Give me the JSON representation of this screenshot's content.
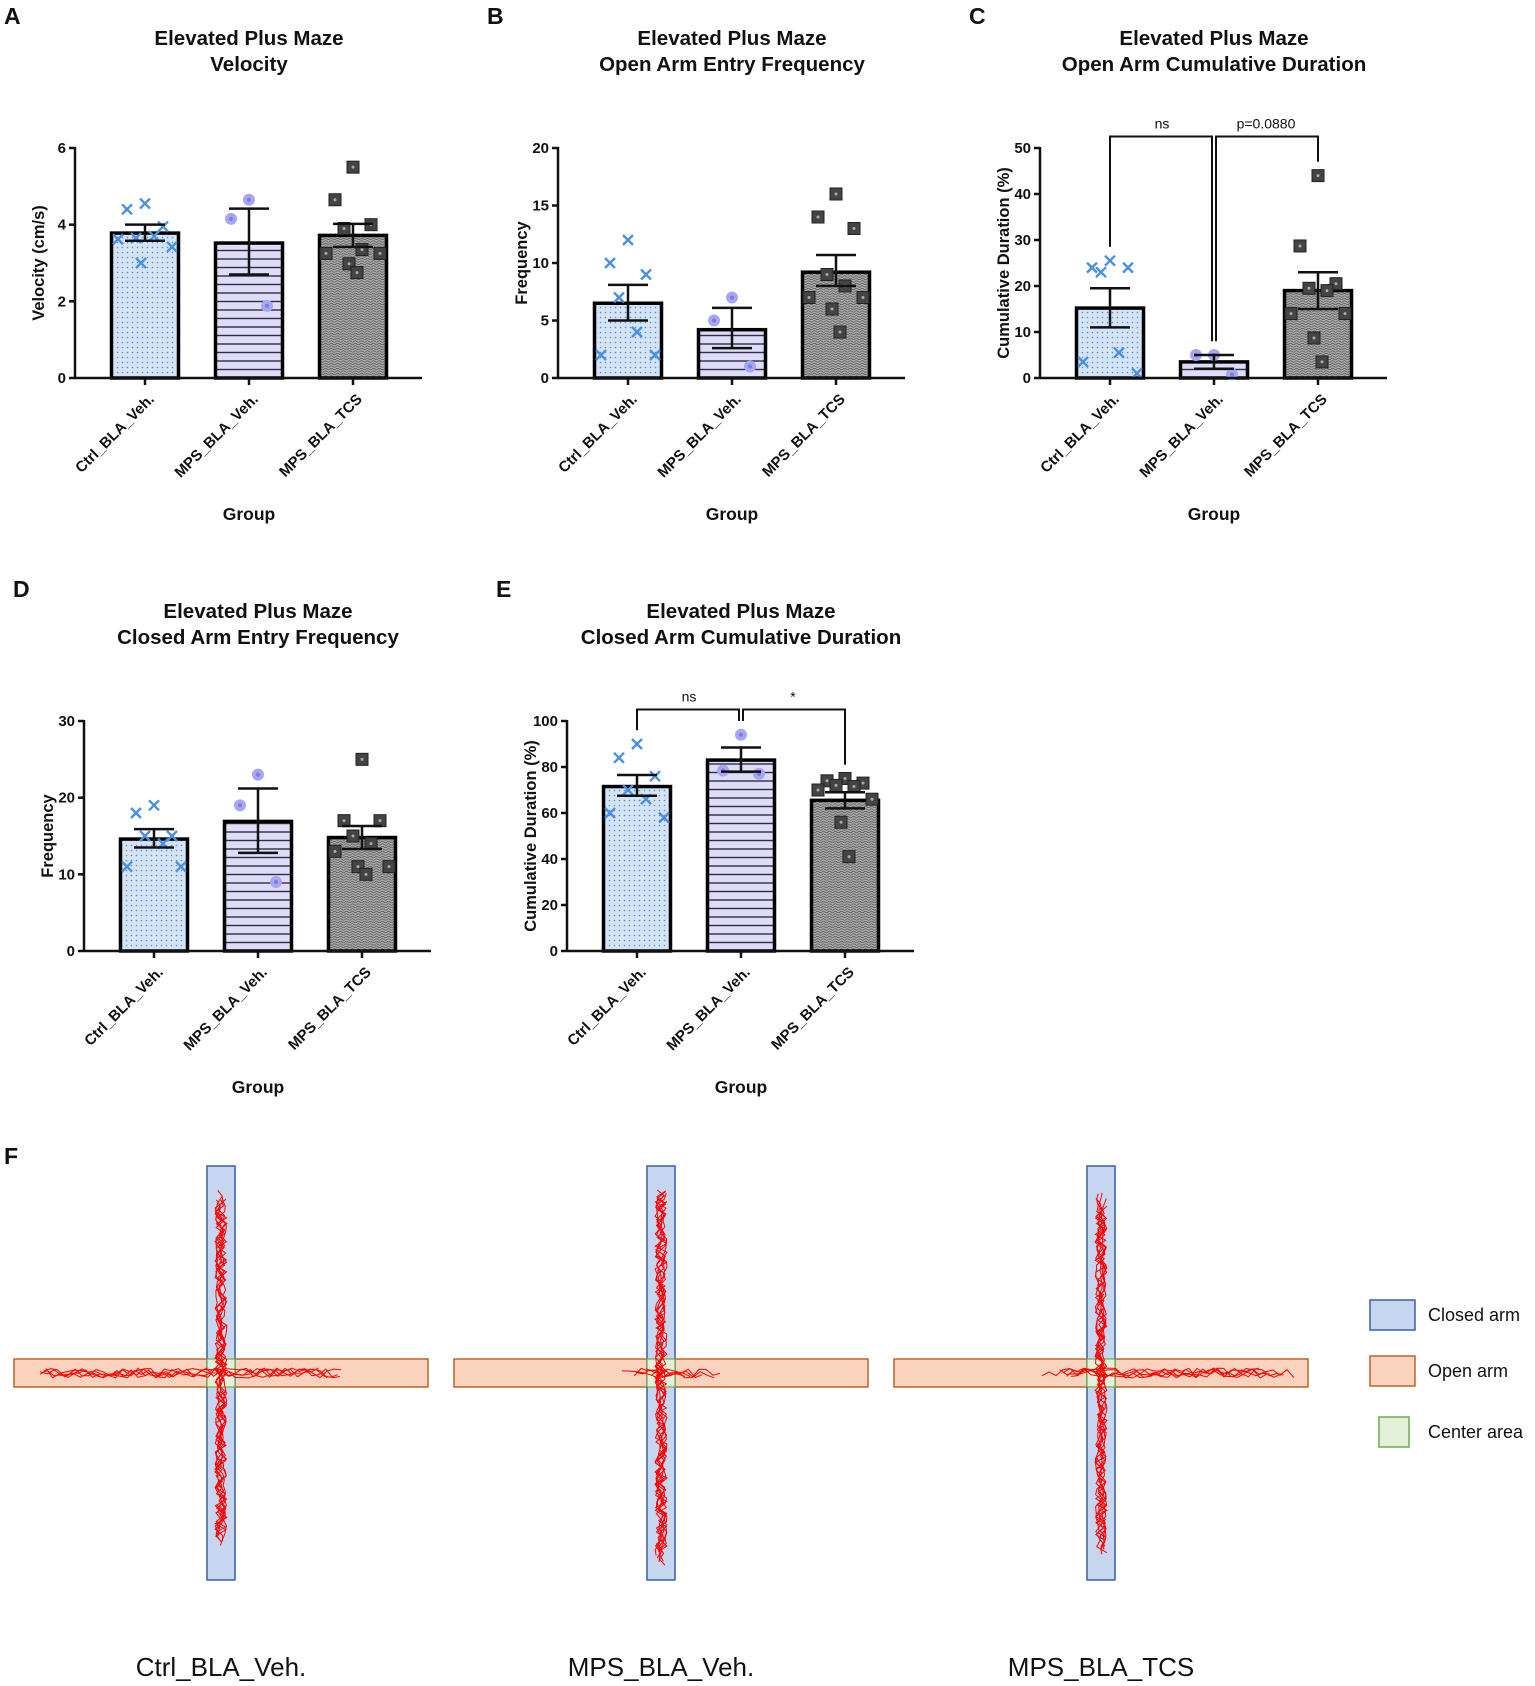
{
  "chart_data": [
    {
      "panel": "A",
      "type": "bar",
      "title_lines": [
        "Elevated Plus Maze",
        "Velocity"
      ],
      "ylabel": "Velocity (cm/s)",
      "xlabel": "Group",
      "categories": [
        "Ctrl_BLA_Veh.",
        "MPS_BLA_Veh.",
        "MPS_BLA_TCS"
      ],
      "ylim": [
        0,
        6
      ],
      "yticks": [
        "0",
        "2",
        "4",
        "6"
      ],
      "series": [
        {
          "name": "Ctrl_BLA_Veh.",
          "mean": 3.78,
          "err": [
            3.58,
            4.0
          ],
          "points": [
            4.55,
            4.4,
            3.95,
            3.65,
            3.7,
            3.62,
            3.42,
            3.0
          ]
        },
        {
          "name": "MPS_BLA_Veh.",
          "mean": 3.52,
          "err": [
            2.7,
            4.42
          ],
          "points": [
            4.65,
            4.15,
            1.88
          ]
        },
        {
          "name": "MPS_BLA_TCS",
          "mean": 3.72,
          "err": [
            3.42,
            4.02
          ],
          "points": [
            5.5,
            4.65,
            4.0,
            3.9,
            3.35,
            3.25,
            3.25,
            2.98,
            2.75
          ]
        }
      ],
      "comparisons": []
    },
    {
      "panel": "B",
      "type": "bar",
      "title_lines": [
        "Elevated Plus Maze",
        "Open Arm Entry Frequency"
      ],
      "ylabel": "Frequency",
      "xlabel": "Group",
      "categories": [
        "Ctrl_BLA_Veh.",
        "MPS_BLA_Veh.",
        "MPS_BLA_TCS"
      ],
      "ylim": [
        0,
        20
      ],
      "yticks": [
        "0",
        "5",
        "10",
        "15",
        "20"
      ],
      "series": [
        {
          "name": "Ctrl_BLA_Veh.",
          "mean": 6.5,
          "err": [
            5.0,
            8.1
          ],
          "points": [
            12,
            10,
            9,
            7,
            4,
            2,
            2
          ]
        },
        {
          "name": "MPS_BLA_Veh.",
          "mean": 4.2,
          "err": [
            2.6,
            6.1
          ],
          "points": [
            7,
            5,
            1
          ]
        },
        {
          "name": "MPS_BLA_TCS",
          "mean": 9.2,
          "err": [
            8.0,
            10.7
          ],
          "points": [
            16,
            14,
            13,
            9,
            8,
            7,
            7,
            6,
            4
          ]
        }
      ],
      "comparisons": []
    },
    {
      "panel": "C",
      "type": "bar",
      "title_lines": [
        "Elevated Plus Maze",
        "Open Arm Cumulative Duration"
      ],
      "ylabel": "Cumulative Duration (%)",
      "xlabel": "Group",
      "categories": [
        "Ctrl_BLA_Veh.",
        "MPS_BLA_Veh.",
        "MPS_BLA_TCS"
      ],
      "ylim": [
        0,
        50
      ],
      "yticks": [
        "0",
        "10",
        "20",
        "30",
        "40",
        "50"
      ],
      "series": [
        {
          "name": "Ctrl_BLA_Veh.",
          "mean": 15.2,
          "err": [
            11.0,
            19.5
          ],
          "points": [
            25.5,
            24,
            24,
            23,
            5.5,
            3.5,
            1
          ]
        },
        {
          "name": "MPS_BLA_Veh.",
          "mean": 3.5,
          "err": [
            2.0,
            5.0
          ],
          "points": [
            5,
            5,
            0.8
          ]
        },
        {
          "name": "MPS_BLA_TCS",
          "mean": 19.0,
          "err": [
            15.0,
            23.0
          ],
          "points": [
            44,
            28.7,
            20.5,
            19.5,
            19,
            14,
            14,
            8.7,
            3.5
          ]
        }
      ],
      "comparisons": [
        {
          "from": 0,
          "to": 1,
          "label": "ns"
        },
        {
          "from": 1,
          "to": 2,
          "label": "p=0.0880"
        }
      ]
    },
    {
      "panel": "D",
      "type": "bar",
      "title_lines": [
        "Elevated Plus Maze",
        "Closed Arm Entry Frequency"
      ],
      "ylabel": "Frequency",
      "xlabel": "Group",
      "categories": [
        "Ctrl_BLA_Veh.",
        "MPS_BLA_Veh.",
        "MPS_BLA_TCS"
      ],
      "ylim": [
        0,
        30
      ],
      "yticks": [
        "0",
        "10",
        "20",
        "30"
      ],
      "series": [
        {
          "name": "Ctrl_BLA_Veh.",
          "mean": 14.6,
          "err": [
            13.5,
            15.9
          ],
          "points": [
            19,
            18,
            15,
            15,
            14,
            11,
            11
          ]
        },
        {
          "name": "MPS_BLA_Veh.",
          "mean": 16.9,
          "err": [
            12.8,
            21.2
          ],
          "points": [
            23,
            19,
            9
          ]
        },
        {
          "name": "MPS_BLA_TCS",
          "mean": 14.8,
          "err": [
            13.3,
            16.3
          ],
          "points": [
            25,
            17,
            17,
            15,
            14,
            13,
            11,
            11,
            10
          ]
        }
      ],
      "comparisons": []
    },
    {
      "panel": "E",
      "type": "bar",
      "title_lines": [
        "Elevated Plus Maze",
        "Closed Arm Cumulative Duration"
      ],
      "ylabel": "Cumulative Duration (%)",
      "xlabel": "Group",
      "categories": [
        "Ctrl_BLA_Veh.",
        "MPS_BLA_Veh.",
        "MPS_BLA_TCS"
      ],
      "ylim": [
        0,
        100
      ],
      "yticks": [
        "0",
        "20",
        "40",
        "60",
        "80",
        "100"
      ],
      "series": [
        {
          "name": "Ctrl_BLA_Veh.",
          "mean": 71.5,
          "err": [
            67.5,
            76.5
          ],
          "points": [
            90,
            84,
            76,
            70,
            66,
            60,
            58
          ]
        },
        {
          "name": "MPS_BLA_Veh.",
          "mean": 83.0,
          "err": [
            78.0,
            88.5
          ],
          "points": [
            94,
            78.5,
            77
          ]
        },
        {
          "name": "MPS_BLA_TCS",
          "mean": 65.5,
          "err": [
            62.0,
            69.0
          ],
          "points": [
            75,
            74,
            73,
            72,
            71.5,
            70,
            66,
            56,
            41
          ]
        }
      ],
      "comparisons": [
        {
          "from": 0,
          "to": 1,
          "label": "ns"
        },
        {
          "from": 1,
          "to": 2,
          "label": "*"
        }
      ]
    }
  ],
  "maze": {
    "panel": "F",
    "groups": [
      "Ctrl_BLA_Veh.",
      "MPS_BLA_Veh.",
      "MPS_BLA_TCS"
    ],
    "legend": [
      {
        "label": "Closed arm",
        "fill": "#c6d6ef",
        "stroke": "#3a5fa8"
      },
      {
        "label": "Open arm",
        "fill": "#f9d3bd",
        "stroke": "#c0622a"
      },
      {
        "label": "Center area",
        "fill": "#e3f0da",
        "stroke": "#6fac46"
      }
    ],
    "trajectory_color": "#ff0000"
  },
  "colors": {
    "ctrl": "#4a90e2",
    "mps_veh": "#a6a6f2",
    "tcs": "#444444"
  }
}
